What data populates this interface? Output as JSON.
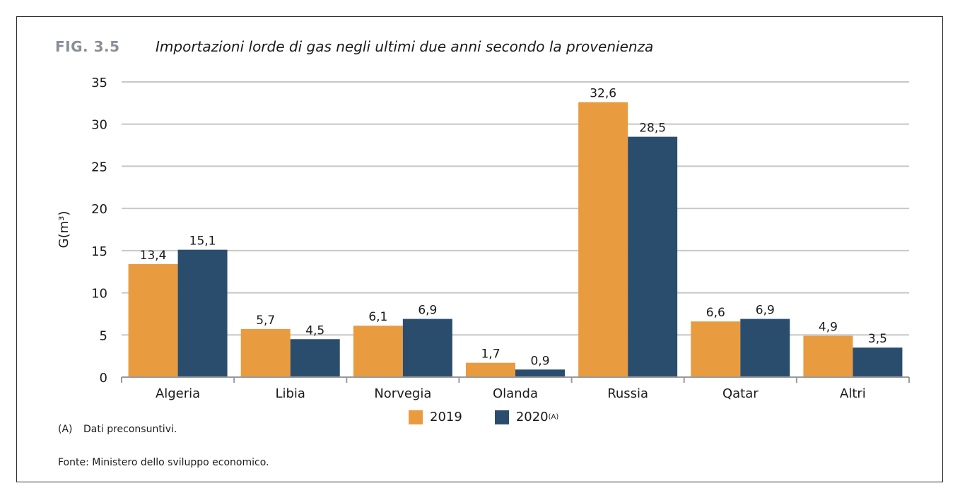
{
  "figure": {
    "label": "FIG. 3.5",
    "title": "Importazioni lorde di gas negli ultimi due anni secondo la provenienza"
  },
  "legend": {
    "items": [
      {
        "label": "2019",
        "sup": "",
        "color": "#E99B40"
      },
      {
        "label": "2020",
        "sup": "(A)",
        "color": "#2A4D6E"
      }
    ]
  },
  "footnote": {
    "key": "(A)",
    "text": "Dati preconsuntivi."
  },
  "source": "Fonte: Ministero dello sviluppo economico.",
  "chart_data": {
    "type": "bar",
    "ylabel": "G(m³)",
    "xlabel": "",
    "ylim": [
      0,
      35
    ],
    "yticks": [
      0,
      5,
      10,
      15,
      20,
      25,
      30,
      35
    ],
    "grid": true,
    "legend_position": "bottom",
    "categories": [
      "Algeria",
      "Libia",
      "Norvegia",
      "Olanda",
      "Russia",
      "Qatar",
      "Altri"
    ],
    "series": [
      {
        "name": "2019",
        "color": "#E99B40",
        "values": [
          13.4,
          5.7,
          6.1,
          1.7,
          32.6,
          6.6,
          4.9
        ],
        "labels": [
          "13,4",
          "5,7",
          "6,1",
          "1,7",
          "32,6",
          "6,6",
          "4,9"
        ]
      },
      {
        "name": "2020(A)",
        "color": "#2A4D6E",
        "values": [
          15.1,
          4.5,
          6.9,
          0.9,
          28.5,
          6.9,
          3.5
        ],
        "labels": [
          "15,1",
          "4,5",
          "6,9",
          "0,9",
          "28,5",
          "6,9",
          "3,5"
        ]
      }
    ]
  }
}
